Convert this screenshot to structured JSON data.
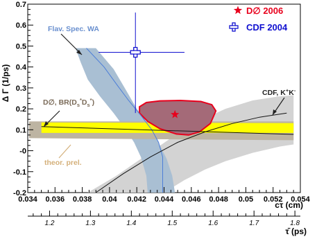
{
  "chart_data": {
    "type": "scatter",
    "title": "",
    "xlabel": "cτ (cm)",
    "ylabel": "Δ Γ (1/ps)",
    "x2label": "τ̄ (ps)",
    "xlim": [
      0.034,
      0.054
    ],
    "ylim": [
      -0.2,
      0.7
    ],
    "x_ticks": [
      0.034,
      0.036,
      0.038,
      0.04,
      0.042,
      0.044,
      0.046,
      0.048,
      0.05,
      0.052,
      0.054
    ],
    "x_tick_labels": [
      "0.034",
      "0.036",
      "0.038",
      "0.04",
      "0.042",
      "0.044",
      "0.046",
      "0.048",
      "0.05",
      "0.052",
      "0.054"
    ],
    "y_ticks": [
      -0.2,
      -0.1,
      0,
      0.1,
      0.2,
      0.3,
      0.4,
      0.5,
      0.6,
      0.7
    ],
    "y_tick_labels": [
      "-0.2",
      "-0.1",
      "-0",
      "0.1",
      "0.2",
      "0.3",
      "0.4",
      "0.5",
      "0.6",
      "0.7"
    ],
    "tau_ticks": [
      1.2,
      1.3,
      1.4,
      1.5,
      1.6,
      1.7,
      1.8
    ],
    "tau_tick_labels": [
      "1.2",
      "1.3",
      "1.4",
      "1.5",
      "1.6",
      "1.7",
      "1.8"
    ],
    "points": [
      {
        "name": "D∅ 2006",
        "x": 0.0448,
        "y": 0.173,
        "marker": "star",
        "color": "#e8001c"
      },
      {
        "name": "CDF 2004",
        "x": 0.0419,
        "y": 0.47,
        "xerr": [
          0.0392,
          0.0455
        ],
        "yerr": [
          0.18,
          0.66
        ],
        "marker": "open-cross",
        "color": "#1010d0"
      }
    ],
    "legend": {
      "placement": "top-right",
      "entries": [
        "D∅ 2006",
        "CDF 2004"
      ]
    },
    "annotations": [
      "Flav. Spec. WA",
      "D∅, BR(Ds*Ds*)",
      "CDF, K⁺K⁻",
      "theor. prel."
    ],
    "regions": [
      {
        "name": "D0 2006 contour",
        "color": "#a46a78",
        "points": [
          [
            0.0422,
            0.21
          ],
          [
            0.0427,
            0.23
          ],
          [
            0.0437,
            0.238
          ],
          [
            0.0452,
            0.24
          ],
          [
            0.0467,
            0.235
          ],
          [
            0.0475,
            0.22
          ],
          [
            0.0478,
            0.19
          ],
          [
            0.0474,
            0.13
          ],
          [
            0.0466,
            0.09
          ],
          [
            0.0458,
            0.075
          ],
          [
            0.0449,
            0.08
          ],
          [
            0.0437,
            0.105
          ],
          [
            0.0428,
            0.14
          ],
          [
            0.0422,
            0.18
          ]
        ]
      },
      {
        "name": "Flav. Spec. WA band",
        "color": "#a9bfd3",
        "points": [
          [
            0.0375,
            0.49
          ],
          [
            0.039,
            0.49
          ],
          [
            0.0403,
            0.39
          ],
          [
            0.0412,
            0.29
          ],
          [
            0.042,
            0.2
          ],
          [
            0.0428,
            0.13
          ],
          [
            0.0435,
            0.05
          ],
          [
            0.0442,
            -0.04
          ],
          [
            0.0446,
            -0.12
          ],
          [
            0.0448,
            -0.2
          ],
          [
            0.0428,
            -0.2
          ],
          [
            0.0427,
            -0.12
          ],
          [
            0.0423,
            -0.03
          ],
          [
            0.0418,
            0.04
          ],
          [
            0.0412,
            0.1
          ],
          [
            0.0403,
            0.18
          ],
          [
            0.0393,
            0.26
          ],
          [
            0.0384,
            0.34
          ],
          [
            0.0379,
            0.42
          ]
        ]
      },
      {
        "name": "CDF K+K- band",
        "color": "#d3d3d3",
        "points": [
          [
            0.0384,
            -0.2
          ],
          [
            0.0405,
            -0.12
          ],
          [
            0.0425,
            -0.03
          ],
          [
            0.0445,
            0.06
          ],
          [
            0.0465,
            0.14
          ],
          [
            0.0485,
            0.2
          ],
          [
            0.0505,
            0.24
          ],
          [
            0.0525,
            0.26
          ],
          [
            0.0535,
            0.265
          ],
          [
            0.0535,
            0.03
          ],
          [
            0.0525,
            0.02
          ],
          [
            0.0505,
            -0.01
          ],
          [
            0.0485,
            -0.05
          ],
          [
            0.047,
            -0.09
          ],
          [
            0.0455,
            -0.14
          ],
          [
            0.044,
            -0.2
          ]
        ]
      },
      {
        "name": "theor. prel. band",
        "color": "#bdb4a2",
        "points": [
          [
            0.0341,
            0.14
          ],
          [
            0.0535,
            0.14
          ],
          [
            0.0535,
            0.05
          ],
          [
            0.0341,
            0.06
          ]
        ]
      },
      {
        "name": "D0 BR(Ds*Ds*) band",
        "color": "#ffff00",
        "points": [
          [
            0.035,
            0.135
          ],
          [
            0.0535,
            0.132
          ],
          [
            0.0535,
            0.085
          ],
          [
            0.035,
            0.085
          ]
        ]
      }
    ],
    "curves": [
      {
        "name": "Flav. Spec. WA central",
        "color": "#4d7ed8",
        "points": [
          [
            0.0383,
            0.49
          ],
          [
            0.0396,
            0.4
          ],
          [
            0.0406,
            0.31
          ],
          [
            0.0414,
            0.24
          ],
          [
            0.0424,
            0.16
          ],
          [
            0.0431,
            0.1
          ],
          [
            0.0436,
            0.04
          ],
          [
            0.0439,
            -0.03
          ],
          [
            0.0439,
            -0.12
          ],
          [
            0.0439,
            -0.2
          ]
        ]
      },
      {
        "name": "CDF K+K- central",
        "color": "#111111",
        "points": [
          [
            0.039,
            -0.2
          ],
          [
            0.041,
            -0.11
          ],
          [
            0.043,
            -0.03
          ],
          [
            0.045,
            0.04
          ],
          [
            0.047,
            0.09
          ],
          [
            0.049,
            0.13
          ],
          [
            0.051,
            0.16
          ],
          [
            0.053,
            0.18
          ]
        ]
      },
      {
        "name": "D0 BR(Ds*Ds*) central",
        "color": "#111111",
        "points": [
          [
            0.035,
            0.115
          ],
          [
            0.0535,
            0.078
          ]
        ]
      }
    ]
  },
  "legend_labels": {
    "d0": "D∅ 2006",
    "cdf": "CDF 2004"
  },
  "annotations": {
    "flav": "Flav. Spec. WA",
    "d0br_main": "D∅, BR(D",
    "d0br_sub1": "s",
    "d0br_sup1": "*",
    "d0br_mid": "D",
    "d0br_sub2": "s",
    "d0br_sup2": "*",
    "d0br_end": ")",
    "cdfkk_main": "CDF, K",
    "cdfkk_sup1": "+",
    "cdfkk_mid": "K",
    "cdfkk_sup2": "-",
    "theor": "theor. prel."
  },
  "axis_titles": {
    "x": "cτ (cm)",
    "y": "Δ Γ (1/ps)",
    "tau": "τ̄ (ps)"
  }
}
